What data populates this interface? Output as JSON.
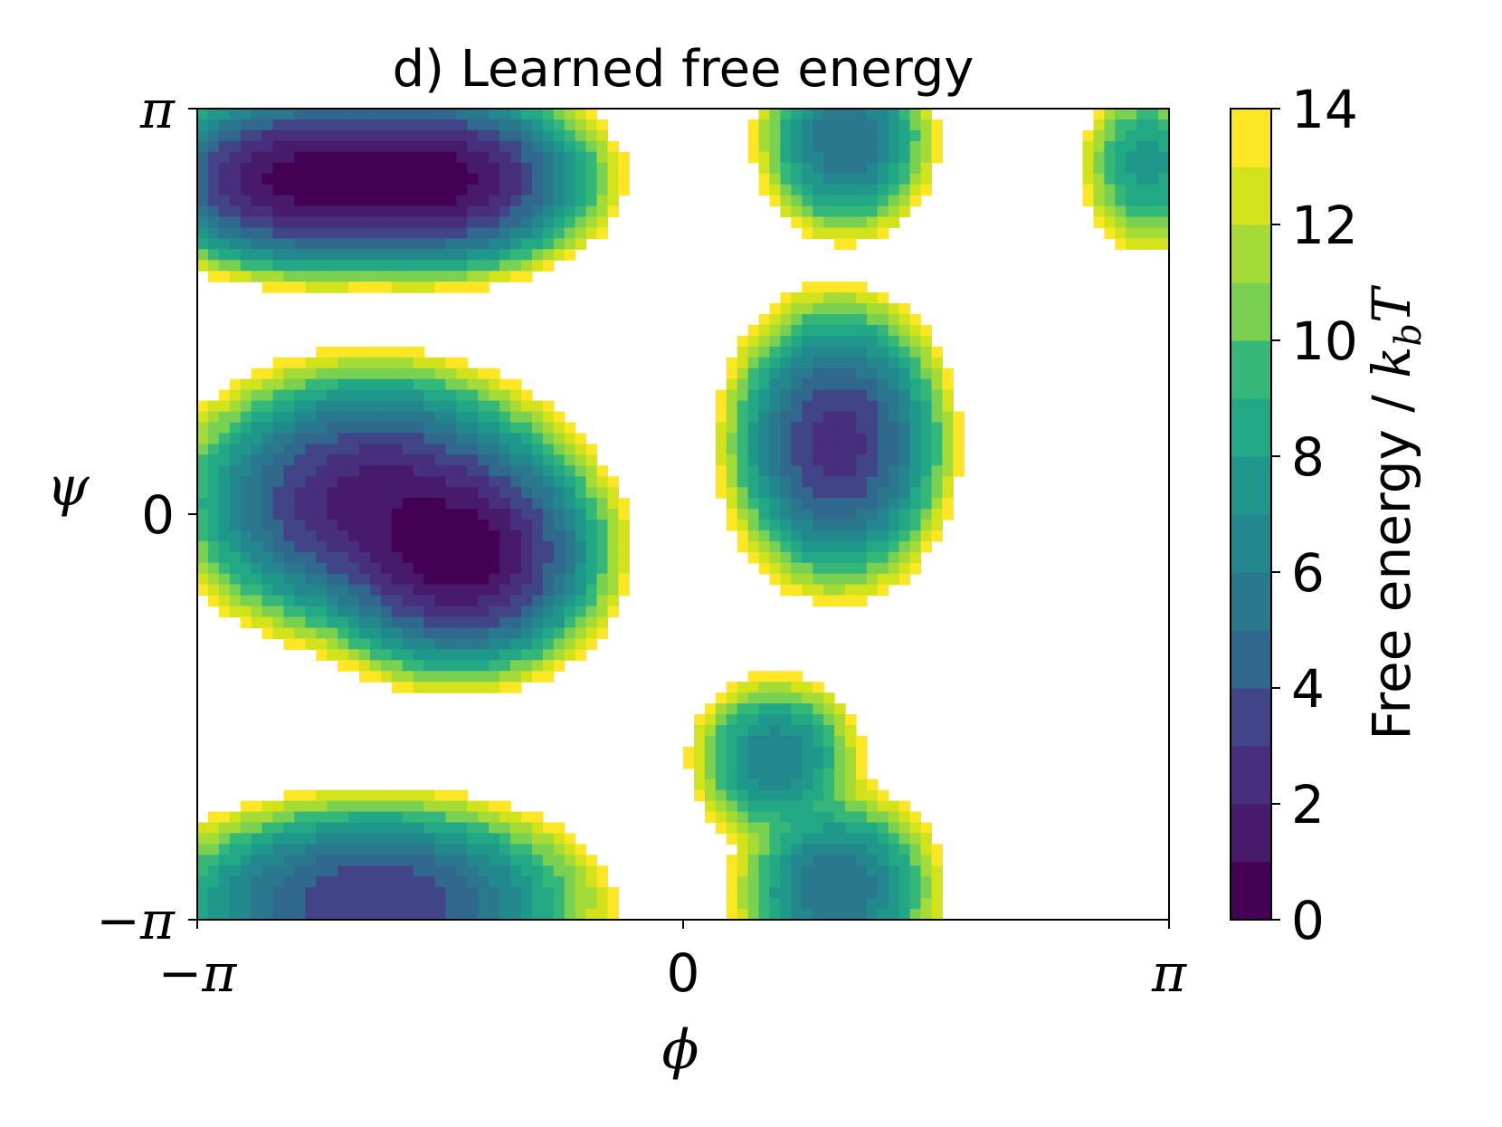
{
  "chart_data": {
    "type": "heatmap",
    "title": "d) Learned free energy",
    "xlabel": "ϕ",
    "ylabel": "ψ",
    "x_range": [
      -3.1416,
      3.1416
    ],
    "y_range": [
      -3.1416,
      3.1416
    ],
    "xticks": [
      {
        "value": -3.1416,
        "label": "−π"
      },
      {
        "value": 0,
        "label": "0"
      },
      {
        "value": 3.1416,
        "label": "π"
      }
    ],
    "yticks": [
      {
        "value": -3.1416,
        "label": "−π"
      },
      {
        "value": 0,
        "label": "0"
      },
      {
        "value": 3.1416,
        "label": "π"
      }
    ],
    "colorbar": {
      "label": "Free energy / k_bT",
      "label_main": "Free energy / ",
      "label_k": "k",
      "label_sub": "b",
      "label_T": "T",
      "range": [
        0,
        14
      ],
      "levels": [
        0,
        1,
        2,
        3,
        4,
        5,
        6,
        7,
        8,
        9,
        10,
        11,
        12,
        13,
        14
      ],
      "ticks": [
        "0",
        "2",
        "4",
        "6",
        "8",
        "10",
        "12",
        "14"
      ],
      "colormap": "viridis",
      "above_max_color": "#ffffff"
    },
    "minima": [
      {
        "phi": -2.4,
        "psi": 2.6,
        "free_energy": 0.4,
        "width_phi": 0.55,
        "width_psi": 0.35
      },
      {
        "phi": -1.6,
        "psi": 2.6,
        "free_energy": 0.5,
        "width_phi": 0.5,
        "width_psi": 0.35
      },
      {
        "phi": -1.45,
        "psi": -0.3,
        "free_energy": 0.3,
        "width_phi": 0.45,
        "width_psi": 0.45
      },
      {
        "phi": -2.0,
        "psi": 0.1,
        "free_energy": 1.5,
        "width_phi": 0.6,
        "width_psi": 0.5
      },
      {
        "phi": 1.0,
        "psi": 0.55,
        "free_energy": 2.5,
        "width_phi": 0.35,
        "width_psi": 0.55
      },
      {
        "phi": 1.05,
        "psi": 2.9,
        "free_energy": 5.0,
        "width_phi": 0.3,
        "width_psi": 0.4
      },
      {
        "phi": 0.6,
        "psi": -1.9,
        "free_energy": 6.0,
        "width_phi": 0.3,
        "width_psi": 0.35
      },
      {
        "phi": 1.0,
        "psi": -2.9,
        "free_energy": 5.0,
        "width_phi": 0.35,
        "width_psi": 0.4
      },
      {
        "phi": -2.0,
        "psi": -3.0,
        "free_energy": 3.0,
        "width_phi": 0.7,
        "width_psi": 0.4
      },
      {
        "phi": 3.0,
        "psi": 2.7,
        "free_energy": 7.5,
        "width_phi": 0.25,
        "width_psi": 0.4
      }
    ]
  }
}
